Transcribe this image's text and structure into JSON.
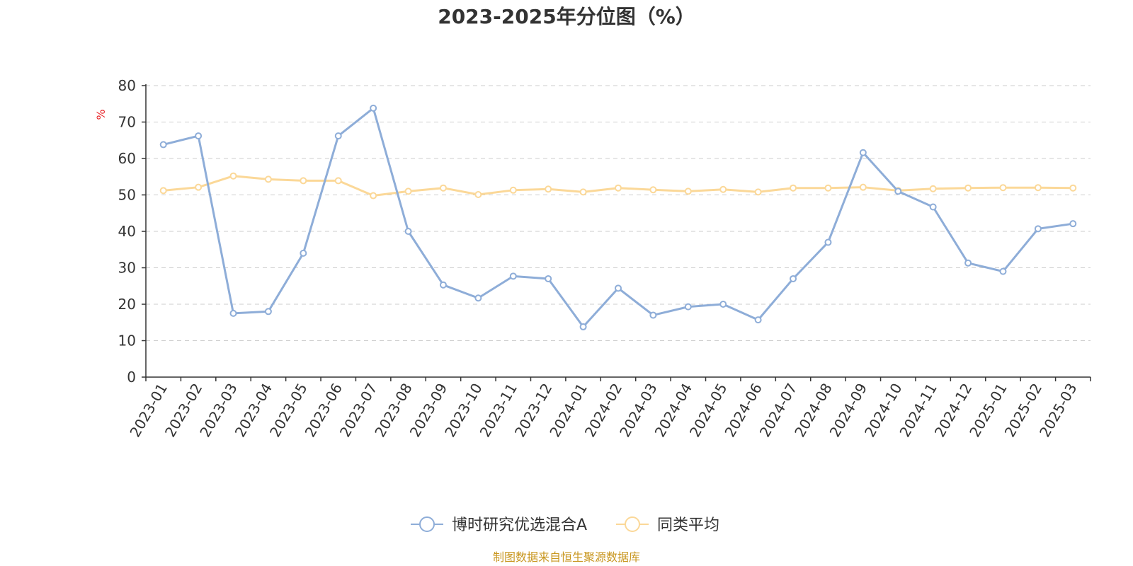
{
  "chart_data": {
    "type": "line",
    "title": "2023-2025年分位图（%）",
    "ylabel": "%",
    "ylim": [
      0,
      80
    ],
    "yticks": [
      0,
      10,
      20,
      30,
      40,
      50,
      60,
      70,
      80
    ],
    "grid": true,
    "legend_position": "bottom-center",
    "categories": [
      "2023-01",
      "2023-02",
      "2023-03",
      "2023-04",
      "2023-05",
      "2023-06",
      "2023-07",
      "2023-08",
      "2023-09",
      "2023-10",
      "2023-11",
      "2023-12",
      "2024-01",
      "2024-02",
      "2024-03",
      "2024-04",
      "2024-05",
      "2024-06",
      "2024-07",
      "2024-08",
      "2024-09",
      "2024-10",
      "2024-11",
      "2024-12",
      "2025-01",
      "2025-02",
      "2025-03"
    ],
    "series": [
      {
        "name": "博时研究优选混合A",
        "color": "#8eadd8",
        "values": [
          63.8,
          66.2,
          17.5,
          18.0,
          34.0,
          66.2,
          73.8,
          40.0,
          25.3,
          21.7,
          27.7,
          27.0,
          13.8,
          24.4,
          17.0,
          19.3,
          20.0,
          15.7,
          27.0,
          37.0,
          61.6,
          51.0,
          46.7,
          31.3,
          29.0,
          40.7,
          42.1
        ]
      },
      {
        "name": "同类平均",
        "color": "#fbd898",
        "values": [
          51.2,
          52.1,
          55.2,
          54.3,
          53.9,
          53.9,
          49.8,
          51.0,
          51.9,
          50.1,
          51.3,
          51.6,
          50.8,
          51.9,
          51.4,
          51.0,
          51.5,
          50.8,
          51.9,
          51.9,
          52.1,
          51.2,
          51.7,
          51.9,
          52.0,
          52.0,
          51.9
        ]
      }
    ]
  },
  "footer": "制图数据来自恒生聚源数据库"
}
